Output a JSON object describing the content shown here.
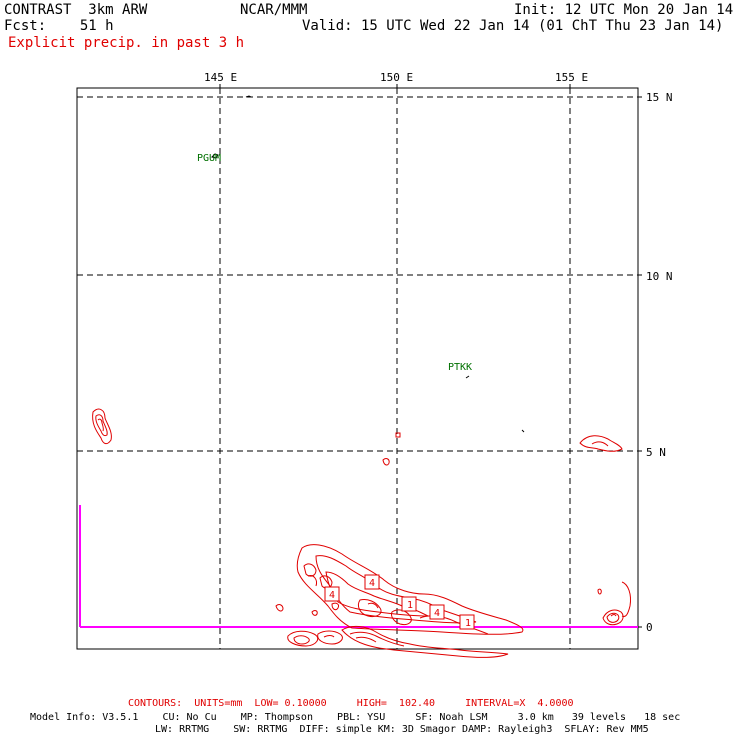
{
  "header": {
    "model": "CONTRAST",
    "resolution": "3km ARW",
    "org": "NCAR/MMM",
    "init": "Init: 12 UTC Mon 20 Jan 14",
    "fcst_label": "Fcst:",
    "fcst_value": "51 h",
    "valid": "Valid: 15 UTC Wed 22 Jan 14 (01 ChT Thu 23 Jan 14)",
    "field_title": "Explicit precip. in past 3 h"
  },
  "map": {
    "lon_labels": [
      "145 E",
      "150 E",
      "155 E"
    ],
    "lat_labels": [
      "15 N",
      "10 N",
      "5 N",
      "0"
    ],
    "stations": [
      "PGUM",
      "PTKK"
    ],
    "colors": {
      "contour": "#e00000",
      "station": "#007000",
      "boundary": "#ff00ff",
      "grid": "#000000"
    },
    "contour_labels": [
      "4",
      "4",
      "1",
      "4",
      "1"
    ]
  },
  "contours_info": "CONTOURS:  UNITS=mm  LOW= 0.10000     HIGH=  102.40     INTERVAL=X  4.0000",
  "model_info": {
    "line1": "Model Info: V3.5.1    CU: No Cu    MP: Thompson    PBL: YSU     SF: Noah LSM     3.0 km   39 levels   18 sec",
    "line2": "LW: RRTMG    SW: RRTMG  DIFF: simple KM: 3D Smagor DAMP: Rayleigh3  SFLAY: Rev MM5"
  }
}
